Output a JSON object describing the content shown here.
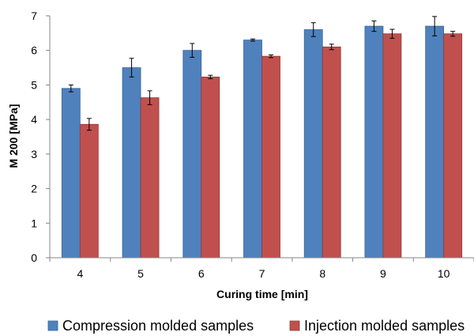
{
  "chart_data": {
    "type": "bar",
    "title": "",
    "xlabel": "Curing time [min]",
    "ylabel": "M 200  [MPa]",
    "categories": [
      "4",
      "5",
      "6",
      "7",
      "8",
      "9",
      "10"
    ],
    "ylim": [
      0,
      7
    ],
    "yticks": [
      "0",
      "1",
      "2",
      "3",
      "4",
      "5",
      "6",
      "7"
    ],
    "grid": false,
    "legend_position": "bottom",
    "series": [
      {
        "name": "Compression molded samples",
        "color": "#4F81BD",
        "values": [
          4.9,
          5.5,
          6.0,
          6.3,
          6.6,
          6.7,
          6.7
        ],
        "errors": [
          0.1,
          0.27,
          0.2,
          0.03,
          0.2,
          0.15,
          0.28
        ]
      },
      {
        "name": "Injection molded samples",
        "color": "#C0504D",
        "values": [
          3.86,
          4.63,
          5.23,
          5.83,
          6.1,
          6.48,
          6.48
        ],
        "errors": [
          0.17,
          0.2,
          0.05,
          0.04,
          0.08,
          0.13,
          0.07
        ]
      }
    ]
  }
}
